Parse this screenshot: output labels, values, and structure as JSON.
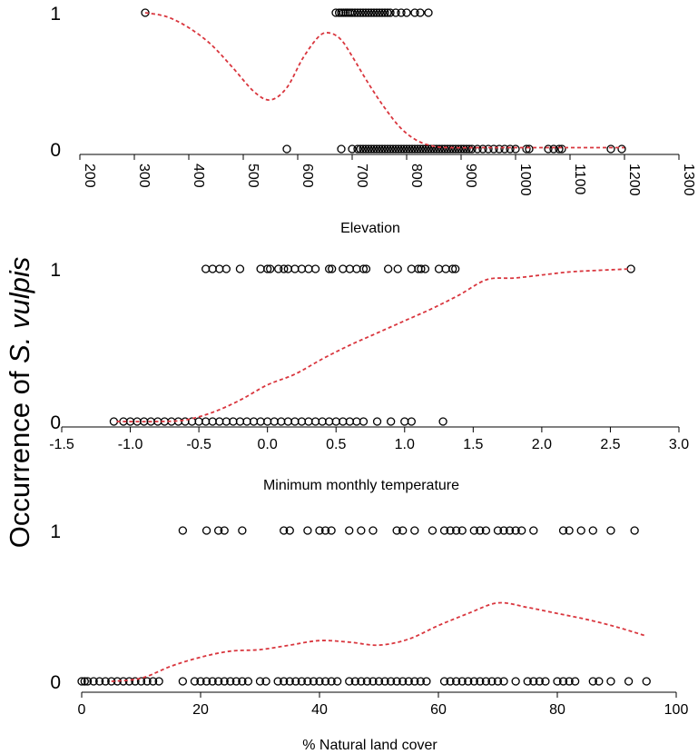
{
  "figure": {
    "ylabel_prefix": "Occurrence of ",
    "ylabel_species": "S. vulpis"
  },
  "colors": {
    "points": "#000000",
    "fit_line": "#d9363e",
    "axes": "#000000"
  },
  "chart_data": [
    {
      "type": "scatter",
      "xlabel": "Elevation",
      "xlim": [
        200,
        1300
      ],
      "xticks": [
        200,
        300,
        400,
        500,
        600,
        700,
        800,
        900,
        1000,
        1100,
        1200,
        1300
      ],
      "xtick_rotation": "vertical",
      "yticks": [
        0,
        1
      ],
      "marker": "open-circle",
      "points_y1": [
        320,
        670,
        676,
        680,
        684,
        688,
        692,
        696,
        700,
        705,
        710,
        715,
        720,
        725,
        730,
        735,
        740,
        745,
        750,
        755,
        760,
        765,
        770,
        780,
        790,
        800,
        815,
        825,
        840
      ],
      "points_y0": [
        580,
        680,
        700,
        710,
        715,
        720,
        725,
        730,
        735,
        740,
        745,
        750,
        755,
        760,
        765,
        770,
        775,
        780,
        785,
        790,
        795,
        800,
        805,
        810,
        815,
        820,
        825,
        830,
        835,
        840,
        845,
        850,
        855,
        860,
        865,
        870,
        875,
        880,
        885,
        890,
        895,
        900,
        905,
        910,
        915,
        920,
        930,
        940,
        950,
        960,
        970,
        980,
        990,
        1000,
        1020,
        1025,
        1060,
        1070,
        1080,
        1085,
        1175,
        1195
      ],
      "fit_line": {
        "style": "dashed",
        "x": [
          320,
          360,
          400,
          440,
          480,
          520,
          550,
          580,
          610,
          640,
          660,
          680,
          700,
          730,
          760,
          790,
          820,
          850,
          880,
          950,
          1050,
          1150,
          1200
        ],
        "y": [
          1.0,
          0.97,
          0.89,
          0.77,
          0.6,
          0.42,
          0.36,
          0.45,
          0.67,
          0.83,
          0.85,
          0.8,
          0.68,
          0.48,
          0.3,
          0.15,
          0.06,
          0.02,
          0.01,
          0.01,
          0.01,
          0.01,
          0.01
        ]
      }
    },
    {
      "type": "scatter",
      "xlabel": "Minimum monthly temperature",
      "xlim": [
        -1.5,
        3.0
      ],
      "xticks": [
        -1.5,
        -1.0,
        -0.5,
        0.0,
        0.5,
        1.0,
        1.5,
        2.0,
        2.5,
        3.0
      ],
      "yticks": [
        0,
        1
      ],
      "marker": "open-circle",
      "points_y1": [
        -0.45,
        -0.4,
        -0.35,
        -0.3,
        -0.2,
        -0.05,
        0.0,
        0.02,
        0.08,
        0.12,
        0.15,
        0.2,
        0.25,
        0.3,
        0.35,
        0.45,
        0.47,
        0.55,
        0.6,
        0.65,
        0.7,
        0.72,
        0.88,
        0.95,
        1.05,
        1.1,
        1.12,
        1.15,
        1.25,
        1.3,
        1.35,
        1.37,
        2.65
      ],
      "points_y0": [
        -1.12,
        -1.05,
        -1.0,
        -0.95,
        -0.9,
        -0.85,
        -0.8,
        -0.75,
        -0.7,
        -0.65,
        -0.6,
        -0.55,
        -0.5,
        -0.45,
        -0.4,
        -0.35,
        -0.3,
        -0.25,
        -0.2,
        -0.15,
        -0.1,
        -0.05,
        0.0,
        0.05,
        0.1,
        0.15,
        0.2,
        0.25,
        0.3,
        0.35,
        0.4,
        0.45,
        0.5,
        0.55,
        0.6,
        0.65,
        0.7,
        0.8,
        0.9,
        1.0,
        1.05,
        1.28
      ],
      "fit_line": {
        "style": "dashed",
        "x": [
          -1.1,
          -0.8,
          -0.6,
          -0.4,
          -0.2,
          0.0,
          0.2,
          0.4,
          0.6,
          0.8,
          1.0,
          1.2,
          1.4,
          1.6,
          1.8,
          2.0,
          2.2,
          2.4,
          2.65
        ],
        "y": [
          0.0,
          0.0,
          0.01,
          0.06,
          0.14,
          0.24,
          0.31,
          0.41,
          0.5,
          0.58,
          0.66,
          0.74,
          0.83,
          0.93,
          0.94,
          0.96,
          0.98,
          0.99,
          1.0
        ]
      }
    },
    {
      "type": "scatter",
      "xlabel": "% Natural land cover",
      "xlim": [
        0,
        100
      ],
      "xticks": [
        0,
        20,
        40,
        60,
        80,
        100
      ],
      "yticks": [
        0,
        1
      ],
      "marker": "open-circle",
      "points_y1": [
        17,
        21,
        23,
        24,
        27,
        34,
        35,
        38,
        40,
        41,
        42,
        45,
        47,
        49,
        53,
        54,
        56,
        59,
        61,
        62,
        63,
        64,
        66,
        67,
        68,
        70,
        71,
        72,
        73,
        74,
        76,
        81,
        82,
        84,
        86,
        89,
        93
      ],
      "points_y0": [
        0,
        0.5,
        1,
        2,
        3,
        4,
        5,
        6,
        7,
        8,
        9,
        10,
        11,
        12,
        13,
        17,
        19,
        20,
        21,
        22,
        23,
        24,
        25,
        26,
        27,
        28,
        30,
        31,
        33,
        34,
        35,
        36,
        37,
        38,
        39,
        40,
        41,
        42,
        43,
        45,
        46,
        47,
        48,
        49,
        50,
        51,
        52,
        53,
        54,
        55,
        56,
        57,
        58,
        61,
        62,
        63,
        64,
        65,
        66,
        67,
        68,
        69,
        70,
        71,
        73,
        75,
        76,
        77,
        78,
        80,
        81,
        82,
        83,
        86,
        87,
        89,
        92,
        95
      ],
      "fit_line": {
        "style": "dashed",
        "x": [
          5,
          10,
          15,
          20,
          25,
          30,
          35,
          40,
          45,
          50,
          55,
          60,
          65,
          70,
          75,
          80,
          85,
          90,
          95
        ],
        "y": [
          0.0,
          0.02,
          0.1,
          0.16,
          0.2,
          0.21,
          0.24,
          0.27,
          0.26,
          0.24,
          0.28,
          0.37,
          0.45,
          0.52,
          0.49,
          0.45,
          0.41,
          0.36,
          0.3
        ]
      }
    }
  ]
}
